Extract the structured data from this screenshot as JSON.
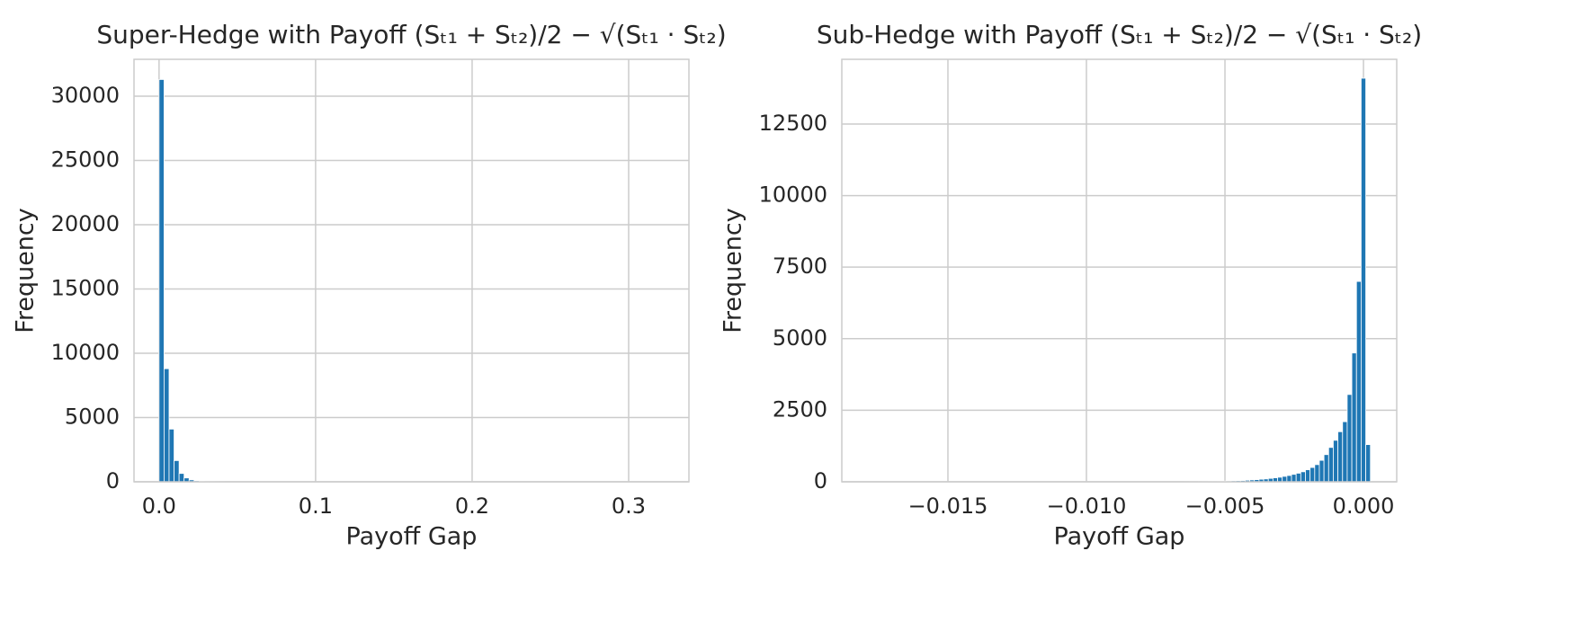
{
  "chart_data": [
    {
      "type": "histogram",
      "title": "Super-Hedge with Payoff (Sₜ₁ + Sₜ₂)/2 − √(Sₜ₁ · Sₜ₂)",
      "x_label": "Payoff Gap",
      "y_label": "Frequency",
      "color": "#1f77b4",
      "grid": true,
      "bins": [
        0,
        0.0032,
        0.0064,
        0.0096,
        0.0128,
        0.016,
        0.0192,
        0.0224,
        0.0256,
        0.0288,
        0.032,
        0.0352,
        0.0384,
        0.0416,
        0.0448,
        0.048,
        0.0512,
        0.0544,
        0.0576,
        0.0608,
        0.064,
        0.0672,
        0.0704,
        0.0736,
        0.0768,
        0.08,
        0.0832,
        0.0864,
        0.0896,
        0.0928,
        0.096,
        0.0992,
        0.1024,
        0.1056,
        0.1088,
        0.112,
        0.1152,
        0.1184,
        0.1216,
        0.1248,
        0.128,
        0.1312,
        0.1344,
        0.1376,
        0.1408,
        0.144,
        0.1472,
        0.1504,
        0.1536,
        0.1568,
        0.16,
        0.1632,
        0.1664,
        0.1696,
        0.1728,
        0.176,
        0.1792,
        0.1824,
        0.1856,
        0.1888,
        0.192,
        0.1952,
        0.1984,
        0.2016,
        0.2048,
        0.208,
        0.2112,
        0.2144,
        0.2176,
        0.2208,
        0.224,
        0.2272,
        0.2304,
        0.2336,
        0.2368,
        0.24,
        0.2432,
        0.2464,
        0.2496,
        0.2528,
        0.256,
        0.2592,
        0.2624,
        0.2656,
        0.2688,
        0.272,
        0.2752,
        0.2784,
        0.2816,
        0.2848,
        0.288,
        0.2912,
        0.2944,
        0.2976,
        0.3008,
        0.304,
        0.3072,
        0.3104,
        0.3136,
        0.3168,
        0.32
      ],
      "values": [
        31300,
        8800,
        4100,
        1650,
        650,
        300,
        150,
        80,
        50,
        30,
        20,
        15,
        10,
        8,
        6,
        5,
        4,
        3,
        3,
        2,
        2,
        2,
        1,
        0,
        0,
        0,
        0,
        0,
        0,
        0,
        0,
        0,
        0,
        0,
        0,
        0,
        0,
        0,
        0,
        0,
        0,
        0,
        0,
        0,
        0,
        0,
        0,
        0,
        0,
        0,
        0,
        0,
        0,
        0,
        0,
        0,
        0,
        0,
        0,
        0,
        0,
        0,
        0,
        0,
        0,
        0,
        0,
        0,
        0,
        0,
        0,
        0,
        0,
        0,
        0,
        0,
        0,
        0,
        0,
        0,
        0,
        0,
        0,
        0,
        0,
        0,
        0,
        0,
        0,
        0,
        0,
        0,
        0,
        0,
        0,
        0,
        0,
        0,
        0,
        1
      ],
      "xlim": [
        -0.016,
        0.3385
      ],
      "ylim": [
        0,
        32870
      ],
      "xticks": [
        {
          "value": 0,
          "label": "0.0"
        },
        0.1,
        0.2,
        0.3
      ],
      "yticks": [
        0,
        5000,
        10000,
        15000,
        20000,
        25000,
        30000
      ]
    },
    {
      "type": "histogram",
      "title": "Sub-Hedge with Payoff (Sₜ₁ + Sₜ₂)/2 − √(Sₜ₁ · Sₜ₂)",
      "x_label": "Payoff Gap",
      "y_label": "Frequency",
      "color": "#1f77b4",
      "grid": true,
      "bins": [
        -0.0165,
        -0.0163325,
        -0.016165,
        -0.0159975,
        -0.01583,
        -0.0156625,
        -0.015495,
        -0.0153275,
        -0.01516,
        -0.0149925,
        -0.014825,
        -0.0146575,
        -0.01449,
        -0.0143225,
        -0.014155,
        -0.0139875,
        -0.01382,
        -0.0136525,
        -0.013485,
        -0.0133175,
        -0.01315,
        -0.0129825,
        -0.012815,
        -0.0126475,
        -0.01248,
        -0.0123125,
        -0.012145,
        -0.0119775,
        -0.01181,
        -0.0116425,
        -0.011475,
        -0.0113075,
        -0.01114,
        -0.0109725,
        -0.010805,
        -0.0106375,
        -0.01047,
        -0.0103025,
        -0.010135,
        -0.0099675,
        -0.0098,
        -0.0096325,
        -0.009465,
        -0.0092975,
        -0.00913,
        -0.0089625,
        -0.008795,
        -0.0086275,
        -0.00846,
        -0.0082925,
        -0.008125,
        -0.0079575,
        -0.00779,
        -0.0076225,
        -0.007455,
        -0.0072875,
        -0.00712,
        -0.0069525,
        -0.006785,
        -0.0066175,
        -0.00645,
        -0.0062825,
        -0.006115,
        -0.0059475,
        -0.00578,
        -0.0056125,
        -0.005445,
        -0.0052775,
        -0.00511,
        -0.0049425,
        -0.004775,
        -0.0046075,
        -0.00444,
        -0.0042725,
        -0.004105,
        -0.0039375,
        -0.00377,
        -0.0036025,
        -0.003435,
        -0.0032675,
        -0.0031,
        -0.0029325,
        -0.002765,
        -0.0025975,
        -0.00243,
        -0.0022625,
        -0.002095,
        -0.0019275,
        -0.00176,
        -0.0015925,
        -0.001425,
        -0.0012575,
        -0.00109,
        -0.0009225,
        -0.000755,
        -0.0005875,
        -0.00042,
        -0.0002525,
        -8.5e-05,
        8.25e-05,
        0.00025
      ],
      "values": [
        1,
        0,
        0,
        0,
        0,
        0,
        0,
        0,
        0,
        0,
        0,
        0,
        0,
        0,
        0,
        0,
        0,
        0,
        0,
        0,
        0,
        0,
        0,
        0,
        0,
        0,
        0,
        0,
        0,
        0,
        0,
        0,
        0,
        0,
        0,
        0,
        0,
        0,
        0,
        0,
        0,
        0,
        0,
        0,
        0,
        0,
        0,
        0,
        0,
        0,
        0,
        0,
        0,
        0,
        0,
        1,
        2,
        2,
        3,
        4,
        5,
        6,
        8,
        10,
        12,
        15,
        18,
        20,
        25,
        30,
        35,
        40,
        45,
        55,
        65,
        75,
        90,
        100,
        120,
        140,
        160,
        190,
        220,
        260,
        300,
        350,
        420,
        500,
        600,
        750,
        950,
        1200,
        1450,
        1750,
        2100,
        3050,
        4500,
        7000,
        14100,
        1300
      ],
      "xlim": [
        -0.01883,
        0.0012
      ],
      "ylim": [
        0,
        14760
      ],
      "xticks": [
        {
          "value": -0.015,
          "label": "−0.015"
        },
        {
          "value": -0.01,
          "label": "−0.010"
        },
        {
          "value": -0.005,
          "label": "−0.005"
        },
        {
          "value": 0,
          "label": "0.000"
        }
      ],
      "yticks": [
        0,
        2500,
        5000,
        7500,
        10000,
        12500
      ]
    }
  ]
}
